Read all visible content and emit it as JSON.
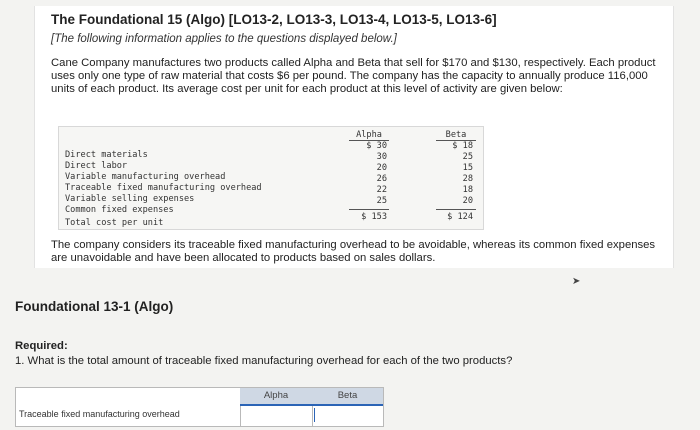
{
  "header": {
    "title": "The Foundational 15 (Algo) [LO13-2, LO13-3, LO13-4, LO13-5, LO13-6]",
    "subtitle": "[The following information applies to the questions displayed below.]"
  },
  "intro": "Cane Company manufactures two products called Alpha and Beta that sell for $170 and $130, respectively. Each product uses only one type of raw material that costs $6 per pound. The company has the capacity to annually produce 116,000 units of each product. Its average cost per unit for each product at this level of activity are given below:",
  "cost_table": {
    "col_alpha": "Alpha",
    "col_beta": "Beta",
    "rows": [
      {
        "label": "Direct materials",
        "alpha": "$ 30",
        "beta": "$ 18"
      },
      {
        "label": "Direct labor",
        "alpha": "30",
        "beta": "25"
      },
      {
        "label": "Variable manufacturing overhead",
        "alpha": "20",
        "beta": "15"
      },
      {
        "label": "Traceable fixed manufacturing overhead",
        "alpha": "26",
        "beta": "28"
      },
      {
        "label": "Variable selling expenses",
        "alpha": "22",
        "beta": "18"
      },
      {
        "label": "Common fixed expenses",
        "alpha": "25",
        "beta": "20"
      }
    ],
    "total": {
      "label": "Total cost per unit",
      "alpha": "$ 153",
      "beta": "$ 124"
    }
  },
  "after_text": "The company considers its traceable fixed manufacturing overhead to be avoidable, whereas its common fixed expenses are unavoidable and have been allocated to products based on sales dollars.",
  "section_title": "Foundational 13-1 (Algo)",
  "required_label": "Required:",
  "question": "1. What is the total amount of traceable fixed manufacturing overhead for each of the two products?",
  "answer_table": {
    "col_alpha": "Alpha",
    "col_beta": "Beta",
    "row_label": "Traceable fixed manufacturing overhead",
    "alpha_value": "",
    "beta_value": ""
  },
  "colors": {
    "accent": "#2b64b6",
    "header_fill": "#cfd8e4"
  }
}
